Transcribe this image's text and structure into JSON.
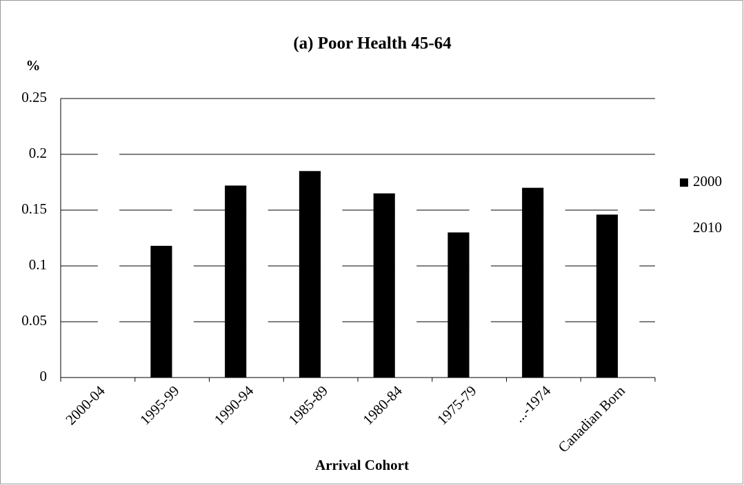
{
  "chart_data": {
    "type": "bar",
    "title": "(a) Poor Health 45-64",
    "ylabel": "%",
    "xlabel": "Arrival Cohort",
    "categories": [
      "2000-04",
      "1995-99",
      "1990-94",
      "1985-89",
      "1980-84",
      "1975-79",
      "...-1974",
      "Canadian Born"
    ],
    "series": [
      {
        "name": "2000",
        "color": "#000000",
        "values": [
          0,
          0.118,
          0.172,
          0.185,
          0.165,
          0.13,
          0.17,
          0.146
        ]
      },
      {
        "name": "2010",
        "color": "#ffffff",
        "values": [
          0.22,
          0.17,
          0.18,
          0.18,
          0.17,
          0.16,
          0.17,
          0.16
        ]
      }
    ],
    "ylim": [
      0,
      0.25
    ],
    "yticks": [
      0,
      0.05,
      0.1,
      0.15,
      0.2,
      0.25
    ],
    "grid": true,
    "legend": "right"
  }
}
